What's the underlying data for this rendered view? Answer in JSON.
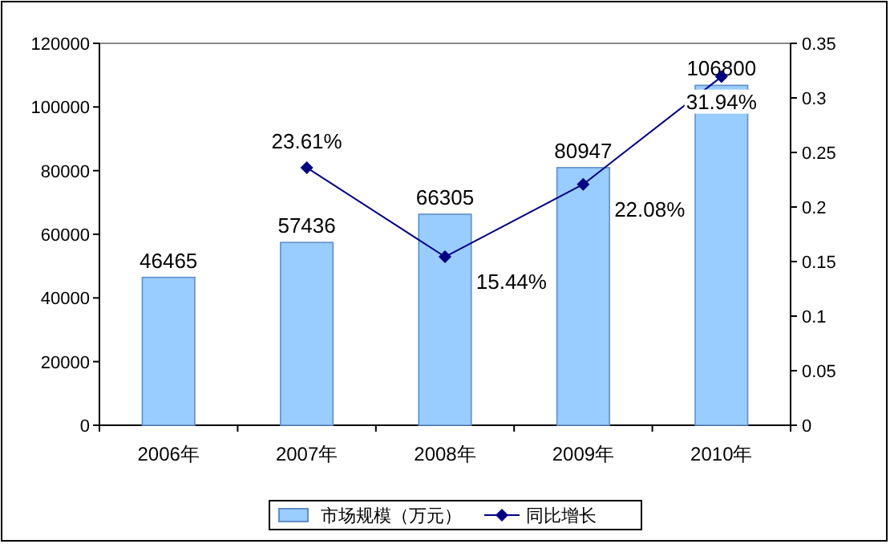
{
  "chart_data": {
    "type": "bar",
    "categories": [
      "2006年",
      "2007年",
      "2008年",
      "2009年",
      "2010年"
    ],
    "series": [
      {
        "name": "市场规模（万元）",
        "color": "#99ccff",
        "values": [
          46465,
          57436,
          66305,
          80947,
          106800
        ],
        "value_labels": [
          "46465",
          "57436",
          "66305",
          "80947",
          "106800"
        ]
      },
      {
        "name": "同比增长",
        "type": "line",
        "axis": "y2",
        "color": "#000080",
        "marker": "diamond",
        "values": [
          null,
          0.2361,
          0.1544,
          0.2208,
          0.3194
        ],
        "value_labels": [
          null,
          "23.61%",
          "15.44%",
          "22.08%",
          "31.94%"
        ]
      }
    ],
    "ylim": [
      0,
      120000
    ],
    "yticks": [
      0,
      20000,
      40000,
      60000,
      80000,
      100000,
      120000
    ],
    "y2lim": [
      0,
      0.35
    ],
    "y2ticks": [
      0,
      0.05,
      0.1,
      0.15,
      0.2,
      0.25,
      0.3,
      0.35
    ],
    "legend": "bottom"
  }
}
